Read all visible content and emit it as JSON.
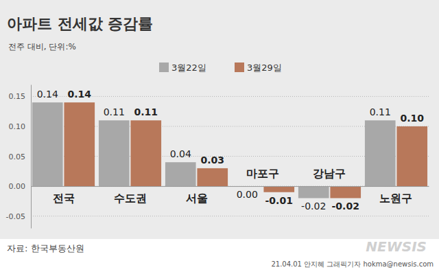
{
  "chart_data": {
    "type": "bar",
    "title": "아파트 전세값 증감률",
    "subtitle": "전주 대비, 단위:%",
    "categories": [
      "전국",
      "수도권",
      "서울",
      "마포구",
      "강남구",
      "노원구"
    ],
    "series": [
      {
        "name": "3월22일",
        "color": "#a8a8a8",
        "values": [
          0.14,
          0.11,
          0.04,
          0.0,
          -0.02,
          0.11
        ],
        "value_labels": [
          "0.14",
          "0.11",
          "0.04",
          "0.00",
          "-0.02",
          "0.11"
        ]
      },
      {
        "name": "3월29일",
        "color": "#b8785a",
        "values": [
          0.14,
          0.11,
          0.03,
          -0.01,
          -0.02,
          0.1
        ],
        "value_labels": [
          "0.14",
          "0.11",
          "0.03",
          "-0.01",
          "-0.02",
          "0.10"
        ]
      }
    ],
    "ylim": [
      -0.07,
      0.17
    ],
    "yticks": [
      -0.05,
      {
        "value": 0,
        "label": "0.00"
      },
      0.05,
      {
        "value": 0.1,
        "label": "0.10"
      },
      0.15
    ],
    "grid": true,
    "data_labels": true,
    "legend": "top",
    "annotations": [
      "자료: 한국부동산원",
      "NEWSIS",
      "21.04.01 안지혜 그래픽기자 hokma@newsis.com"
    ]
  }
}
